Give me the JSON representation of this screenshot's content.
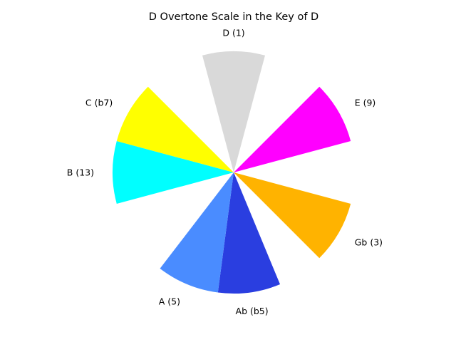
{
  "chart_data": {
    "type": "pie",
    "title": "D Overtone Scale in the Key of D",
    "legend": "none",
    "grid": false,
    "slices": [
      {
        "label": "D (1)",
        "angle_deg": 90,
        "span_deg": 30,
        "color": "#d9d9d9"
      },
      {
        "label": "E (9)",
        "angle_deg": 30,
        "span_deg": 30,
        "color": "#ff00ff"
      },
      {
        "label": "Gb (3)",
        "angle_deg": -30,
        "span_deg": 30,
        "color": "#ffb300"
      },
      {
        "label": "Ab (b5)",
        "angle_deg": -82.5,
        "span_deg": 30,
        "color": "#2a3ee0"
      },
      {
        "label": "A (5)",
        "angle_deg": -112.5,
        "span_deg": 30,
        "color": "#4a8cff"
      },
      {
        "label": "B (13)",
        "angle_deg": 180,
        "span_deg": 30,
        "color": "#00ffff"
      },
      {
        "label": "C (b7)",
        "angle_deg": 150,
        "span_deg": 30,
        "color": "#ffff00"
      }
    ]
  }
}
